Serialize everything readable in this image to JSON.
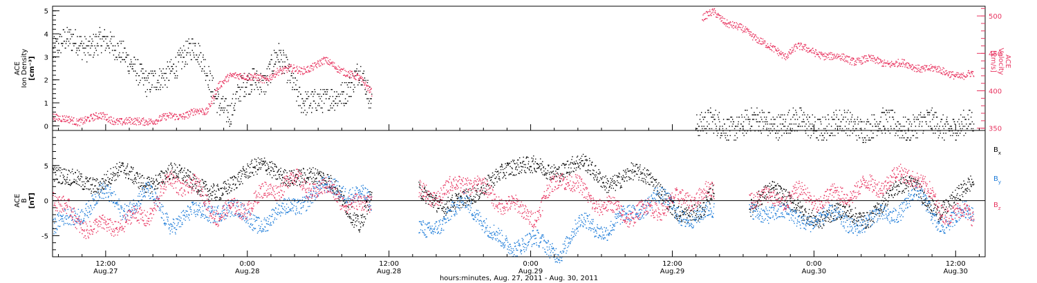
{
  "colors": {
    "black": "#000000",
    "pink": "#e8335f",
    "blue": "#1a7ad8"
  },
  "xaxis": {
    "ticks": [
      {
        "t": 12,
        "time": "12:00",
        "date": "Aug.27"
      },
      {
        "t": 24,
        "time": "0:00",
        "date": "Aug.28"
      },
      {
        "t": 36,
        "time": "12:00",
        "date": "Aug.28"
      },
      {
        "t": 48,
        "time": "0:00",
        "date": "Aug.29"
      },
      {
        "t": 60,
        "time": "12:00",
        "date": "Aug.29"
      },
      {
        "t": 72,
        "time": "0:00",
        "date": "Aug.30"
      },
      {
        "t": 84,
        "time": "12:00",
        "date": "Aug.30"
      }
    ],
    "label": "hours:minutes, Aug. 27, 2011 - Aug. 30, 2011"
  },
  "top_panel": {
    "left_label_lines": [
      "ACE",
      "Ion Density"
    ],
    "left_unit": "[cm⁻³]",
    "left_ticks": [
      "0",
      "1",
      "2",
      "3",
      "4",
      "5"
    ],
    "right_label_lines": [
      "ACE",
      "Velocity"
    ],
    "right_unit": "[km/s]",
    "right_ticks": [
      "350",
      "400",
      "450",
      "500"
    ]
  },
  "bottom_panel": {
    "left_label_lines": [
      "ACE",
      "B"
    ],
    "left_unit": "[nT]",
    "left_ticks": [
      "-5",
      "0",
      "5"
    ],
    "legend": [
      {
        "label": "B",
        "sub": "x",
        "color": "#000000"
      },
      {
        "label": "B",
        "sub": "y",
        "color": "#1a7ad8"
      },
      {
        "label": "B",
        "sub": "z",
        "color": "#e8335f"
      }
    ]
  },
  "chart_data": [
    {
      "type": "scatter",
      "x_units": "hours since Aug. 27, 2011 00:00",
      "xlim": [
        7.5,
        86.5
      ],
      "ylim_left": [
        -0.2,
        5.2
      ],
      "ylim_right": [
        347,
        513
      ],
      "series": [
        {
          "name": "Ion Density",
          "axis": "left",
          "color": "#000000",
          "segments": [
            {
              "x": [
                7.5,
                8.5,
                9.5,
                10.5,
                11.5,
                12.5,
                13.5,
                14.5,
                15.5,
                16.5,
                17.5,
                18.5,
                19.5,
                20.5,
                21.5,
                22.5,
                23.5,
                24.5,
                25.5,
                26.5,
                27.5,
                28.5,
                29.5,
                30.5,
                31.5,
                32.5,
                33.5,
                34.5
              ],
              "y": [
                3.2,
                3.6,
                3.8,
                3.5,
                3.6,
                3.4,
                3.3,
                2.6,
                1.6,
                2.0,
                2.6,
                3.0,
                3.3,
                2.5,
                1.2,
                0.4,
                1.6,
                2.2,
                2.0,
                3.0,
                2.2,
                1.3,
                1.1,
                0.9,
                1.3,
                1.8,
                2.4,
                0.8
              ]
            },
            {
              "x": [
                62.0,
                64.0,
                66.0,
                68.0,
                70.0,
                72.0,
                74.0,
                76.0,
                78.0,
                80.0,
                82.0,
                84.0,
                85.5
              ],
              "y": [
                0.05,
                0.05,
                0.07,
                0.2,
                0.12,
                0.05,
                0.05,
                0.05,
                0.05,
                0.05,
                0.05,
                0.05,
                0.05
              ]
            }
          ]
        },
        {
          "name": "Velocity",
          "axis": "right",
          "color": "#e8335f",
          "segments": [
            {
              "x": [
                7.5,
                8.5,
                9.5,
                10.5,
                11.5,
                12.5,
                13.5,
                14.5,
                15.5,
                16.5,
                17.5,
                18.5,
                19.5,
                20.5,
                21.5,
                22.5,
                23.5,
                24.5,
                25.5,
                26.5,
                27.5,
                28.5,
                29.5,
                30.5,
                31.5,
                32.5,
                33.5,
                34.5
              ],
              "y": [
                368,
                362,
                358,
                365,
                366,
                362,
                360,
                358,
                361,
                362,
                366,
                368,
                372,
                372,
                408,
                418,
                422,
                420,
                412,
                428,
                430,
                426,
                434,
                440,
                432,
                425,
                415,
                400
              ]
            },
            {
              "x": [
                62.5,
                63.5,
                64.5,
                65.5,
                66.5,
                67.5,
                68.5,
                69.5,
                70.5,
                71.5,
                72.5,
                73.5,
                74.5,
                75.5,
                76.5,
                77.5,
                78.5,
                79.5,
                80.5,
                81.5,
                82.5,
                83.5,
                84.5,
                85.5
              ],
              "y": [
                497,
                505,
                493,
                485,
                477,
                468,
                455,
                447,
                461,
                454,
                450,
                446,
                444,
                441,
                442,
                440,
                437,
                436,
                433,
                430,
                428,
                425,
                418,
                424
              ]
            }
          ]
        }
      ]
    },
    {
      "type": "scatter",
      "x_units": "hours since Aug. 27, 2011 00:00",
      "xlim": [
        7.5,
        86.5
      ],
      "ylim": [
        -8,
        10
      ],
      "series": [
        {
          "name": "Bx",
          "color": "#000000",
          "segments": [
            {
              "x": [
                7.5,
                9.5,
                11.5,
                13.5,
                15.5,
                17.5,
                19.5,
                21.5,
                23.5,
                25.5,
                27.5,
                29.5,
                31.5,
                33.5,
                34.5
              ],
              "y": [
                3,
                4,
                2,
                4,
                3,
                4,
                2,
                2,
                3,
                5,
                4,
                3,
                2,
                -3,
                1
              ]
            },
            {
              "x": [
                38.5,
                40.5,
                42.5,
                44.5,
                46.5,
                48.5,
                50.5,
                52.5,
                54.5,
                56.5,
                58.5,
                60.5,
                62.5,
                63.5
              ],
              "y": [
                2,
                -2,
                1,
                3,
                4,
                6,
                4,
                5,
                3,
                4,
                2,
                -1,
                -2,
                1
              ]
            },
            {
              "x": [
                66.5,
                68.5,
                70.5,
                72.5,
                74.5,
                76.5,
                78.5,
                80.5,
                82.5,
                84.5,
                85.5
              ],
              "y": [
                -1,
                1,
                0,
                -3,
                -2,
                -2,
                1,
                2,
                -1,
                1,
                2
              ]
            }
          ]
        },
        {
          "name": "By",
          "color": "#1a7ad8",
          "segments": [
            {
              "x": [
                7.5,
                9.5,
                11.5,
                13.5,
                15.5,
                17.5,
                19.5,
                21.5,
                23.5,
                25.5,
                27.5,
                29.5,
                31.5,
                33.5,
                34.5
              ],
              "y": [
                -4,
                -2,
                1,
                -1,
                1,
                -3,
                -2,
                -1,
                -2,
                -3,
                -1,
                1,
                2,
                1,
                -1
              ]
            },
            {
              "x": [
                38.5,
                40.5,
                42.5,
                44.5,
                46.5,
                48.5,
                50.5,
                52.5,
                54.5,
                56.5,
                58.5,
                60.5,
                62.5,
                63.5
              ],
              "y": [
                -3,
                -4,
                1,
                -5,
                -6,
                -6,
                -7,
                -3,
                -4,
                -2,
                1,
                -2,
                -2,
                -2
              ]
            },
            {
              "x": [
                66.5,
                68.5,
                70.5,
                72.5,
                74.5,
                76.5,
                78.5,
                80.5,
                82.5,
                84.5,
                85.5
              ],
              "y": [
                -2,
                -1,
                -3,
                -2,
                -3,
                -3,
                -2,
                1,
                -3,
                -2,
                -2
              ]
            }
          ]
        },
        {
          "name": "Bz",
          "color": "#e8335f",
          "segments": [
            {
              "x": [
                7.5,
                9.5,
                11.5,
                13.5,
                15.5,
                17.5,
                19.5,
                21.5,
                23.5,
                25.5,
                27.5,
                29.5,
                31.5,
                33.5,
                34.5
              ],
              "y": [
                1,
                -3,
                -4,
                -3,
                -2,
                3,
                2,
                -2,
                -1,
                1,
                3,
                2,
                1,
                -1,
                0
              ]
            },
            {
              "x": [
                38.5,
                40.5,
                42.5,
                44.5,
                46.5,
                48.5,
                50.5,
                52.5,
                54.5,
                56.5,
                58.5,
                60.5,
                62.5,
                63.5
              ],
              "y": [
                1,
                1,
                3,
                1,
                -1,
                -2,
                4,
                1,
                -1,
                -2,
                -1,
                0,
                1,
                1
              ]
            },
            {
              "x": [
                66.5,
                68.5,
                70.5,
                72.5,
                74.5,
                76.5,
                78.5,
                80.5,
                82.5,
                84.5,
                85.5
              ],
              "y": [
                1,
                0,
                1,
                0,
                1,
                2,
                3,
                4,
                -1,
                -2,
                -2
              ]
            }
          ]
        }
      ]
    }
  ]
}
